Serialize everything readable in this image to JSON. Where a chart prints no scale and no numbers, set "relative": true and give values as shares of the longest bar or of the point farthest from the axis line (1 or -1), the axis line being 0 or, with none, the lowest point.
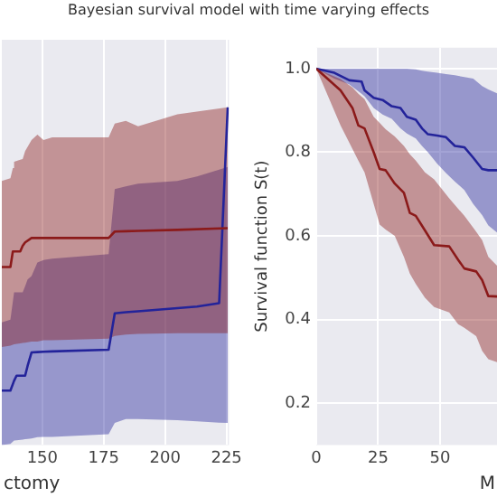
{
  "chart_data": [
    {
      "type": "line",
      "title": "Bayesian survival model with time varying effects",
      "xlabel": "ctomy",
      "relative": true,
      "xlim": [
        133.5,
        226
      ],
      "xticks": [
        150,
        175,
        200,
        225
      ],
      "grid": "x",
      "tick_labels": "x",
      "series": [
        {
          "color": "#8b1a1a",
          "x": [
            133.5,
            137,
            138,
            138.5,
            141,
            142,
            143,
            145.6,
            148,
            150.5,
            154,
            177,
            179.5,
            184,
            189,
            205,
            225.5
          ],
          "values": [
            0.527,
            0.527,
            0.573,
            0.573,
            0.573,
            0.59,
            0.6,
            0.613,
            0.613,
            0.613,
            0.613,
            0.613,
            0.632,
            0.633,
            0.634,
            0.637,
            0.642
          ],
          "upper": [
            0.782,
            0.79,
            0.82,
            0.839,
            0.845,
            0.847,
            0.87,
            0.903,
            0.919,
            0.903,
            0.911,
            0.911,
            0.952,
            0.96,
            0.944,
            0.979,
            1.0
          ],
          "lower": [
            0.29,
            0.294,
            0.297,
            0.298,
            0.301,
            0.302,
            0.303,
            0.306,
            0.306,
            0.31,
            0.31,
            0.315,
            0.323,
            0.327,
            0.329,
            0.331,
            0.331
          ]
        },
        {
          "color": "#23239a",
          "x": [
            133.5,
            137,
            138.5,
            139.5,
            142,
            143,
            144,
            145.6,
            148,
            150.5,
            154,
            177,
            179.5,
            184,
            189,
            205,
            213,
            222,
            225.5
          ],
          "values": [
            0.161,
            0.161,
            0.19,
            0.205,
            0.205,
            0.205,
            0.234,
            0.274,
            0.275,
            0.276,
            0.277,
            0.282,
            0.39,
            0.393,
            0.396,
            0.405,
            0.41,
            0.42,
            1.0
          ],
          "upper": [
            0.363,
            0.371,
            0.452,
            0.452,
            0.452,
            0.47,
            0.49,
            0.5,
            0.54,
            0.548,
            0.552,
            0.565,
            0.758,
            0.766,
            0.774,
            0.782,
            0.795,
            0.815,
            0.823
          ],
          "lower": [
            0,
            0.003,
            0.013,
            0.014,
            0.016,
            0.017,
            0.018,
            0.019,
            0.023,
            0.024,
            0.024,
            0.032,
            0.065,
            0.077,
            0.077,
            0.073,
            0.07,
            0.066,
            0.065
          ]
        }
      ]
    },
    {
      "type": "line",
      "xlabel": "M",
      "ylabel": "Survival function S(t)",
      "xlim": [
        0,
        73
      ],
      "ylim": [
        0.1,
        1.05
      ],
      "xticks": [
        0,
        25,
        50
      ],
      "yticks": [
        0.2,
        0.4,
        0.6,
        0.8,
        {
          "value": 1,
          "label": "1.0"
        }
      ],
      "grid": true,
      "series": [
        {
          "color": "#8b1a1a",
          "x": [
            0,
            9.8,
            14.6,
            17,
            19.5,
            23.2,
            25.6,
            28,
            31.7,
            35.4,
            37.8,
            40.2,
            43.9,
            47.6,
            53.7,
            57.3,
            59.8,
            64.6,
            67,
            69.5,
            73
          ],
          "values": [
            1,
            0.948,
            0.906,
            0.864,
            0.857,
            0.8,
            0.76,
            0.757,
            0.725,
            0.703,
            0.655,
            0.648,
            0.613,
            0.578,
            0.575,
            0.543,
            0.522,
            0.515,
            0.494,
            0.456,
            0.455
          ],
          "upper": [
            1,
            0.975,
            0.955,
            0.94,
            0.927,
            0.885,
            0.87,
            0.855,
            0.838,
            0.815,
            0.795,
            0.78,
            0.752,
            0.735,
            0.69,
            0.665,
            0.648,
            0.61,
            0.59,
            0.55,
            0.529
          ],
          "lower": [
            1,
            0.864,
            0.808,
            0.78,
            0.752,
            0.676,
            0.627,
            0.615,
            0.6,
            0.55,
            0.51,
            0.485,
            0.452,
            0.43,
            0.417,
            0.389,
            0.38,
            0.36,
            0.325,
            0.305,
            0.298
          ]
        },
        {
          "color": "#23239a",
          "x": [
            0,
            7.3,
            13.4,
            18.3,
            19.5,
            23.2,
            26.8,
            30.5,
            34,
            36.6,
            40.2,
            42.7,
            45.1,
            48.8,
            52.4,
            56,
            59.8,
            63.4,
            67,
            69.5,
            73
          ],
          "values": [
            1,
            0.99,
            0.972,
            0.969,
            0.948,
            0.93,
            0.925,
            0.91,
            0.906,
            0.885,
            0.878,
            0.857,
            0.843,
            0.84,
            0.836,
            0.815,
            0.812,
            0.787,
            0.76,
            0.757,
            0.757
          ],
          "upper": [
            1,
            1,
            1,
            1,
            1,
            1,
            1,
            1,
            1,
            1,
            0.998,
            0.995,
            0.993,
            0.99,
            0.987,
            0.984,
            0.98,
            0.976,
            0.958,
            0.95,
            0.941
          ],
          "lower": [
            1,
            0.976,
            0.962,
            0.94,
            0.934,
            0.906,
            0.89,
            0.88,
            0.857,
            0.845,
            0.833,
            0.815,
            0.8,
            0.773,
            0.75,
            0.73,
            0.71,
            0.676,
            0.65,
            0.625,
            0.608
          ]
        }
      ]
    }
  ]
}
